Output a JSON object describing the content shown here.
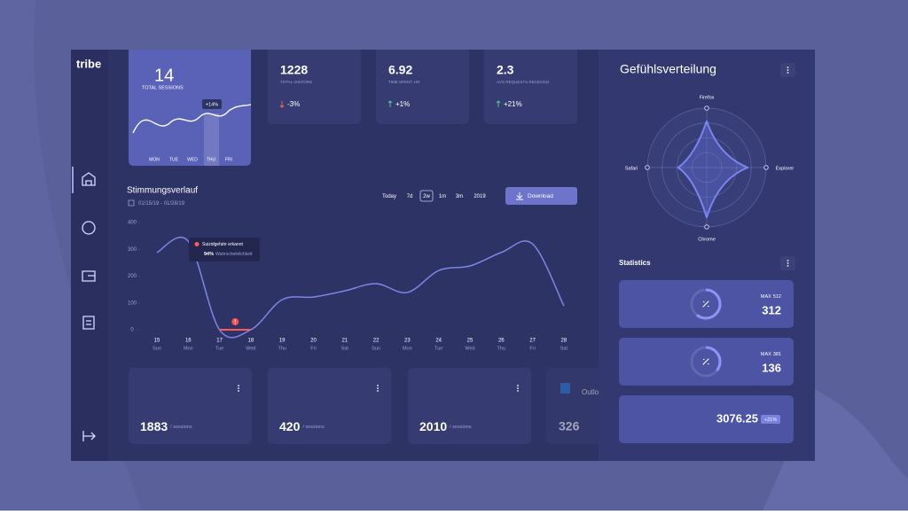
{
  "brand": "tribe",
  "hero": {
    "value": "14",
    "label": "TOTAL SESSIONS",
    "badge": "+14%",
    "days": [
      "MON",
      "TUE",
      "WED",
      "THU",
      "FRI"
    ]
  },
  "kpis": [
    {
      "value": "1228",
      "label": "TOTAL VISITORS",
      "change": "-3%"
    },
    {
      "value": "6.92",
      "label": "TIME SPENT, HR",
      "change": "+1%"
    },
    {
      "value": "2.3",
      "label": "AVG REQUESTS RECEIVED",
      "change": "+21%"
    }
  ],
  "controls": {
    "ranges": [
      "Today",
      "7d",
      "2w",
      "1m",
      "3m",
      "2019"
    ],
    "active": "2w",
    "download": "Download"
  },
  "chart_data": [
    {
      "type": "line",
      "title": "Stimmungsverlauf",
      "subtitle": "01/15/19 - 01/28/19",
      "categories": [
        "15",
        "16",
        "17",
        "18",
        "19",
        "20",
        "21",
        "22",
        "23",
        "24",
        "25",
        "26",
        "27",
        "28"
      ],
      "weekdays": [
        "Sun",
        "Mon",
        "Tue",
        "Wed",
        "Thu",
        "Fri",
        "Sat",
        "Sun",
        "Mon",
        "Tue",
        "Wed",
        "Thu",
        "Fri",
        "Sat"
      ],
      "values": [
        288,
        330,
        0,
        0,
        112,
        122,
        145,
        172,
        139,
        221,
        238,
        288,
        320,
        89
      ],
      "ylim": [
        0,
        400
      ],
      "yticks": [
        0,
        100,
        200,
        300,
        400
      ],
      "color": "#7d86e8",
      "annotation": {
        "title": "Suizidgefahr erkannt",
        "value": "94%",
        "label": "Wahrscheinlichkeit"
      }
    },
    {
      "type": "radar",
      "title": "Gefühlsverteilung",
      "categories": [
        "Firefox",
        "Explorer",
        "Chrome",
        "Safari"
      ],
      "values": [
        78,
        69,
        84,
        48
      ],
      "rlim": [
        0,
        100
      ],
      "color": "#7b84f0"
    }
  ],
  "statistics": {
    "title": "Statistics",
    "cards": [
      {
        "max_prefix": "MAX",
        "max": 512,
        "value": 312
      },
      {
        "max_prefix": "MAX",
        "max": 381,
        "value": 136
      },
      {
        "value": 3076.25,
        "badge": "+21%"
      }
    ]
  },
  "sessions": [
    {
      "value": "1883",
      "unit": "/ sessions"
    },
    {
      "value": "420",
      "unit": "/ sessions"
    },
    {
      "value": "2010",
      "unit": "/ sessions"
    },
    {
      "value": "326",
      "label": "Outlook"
    }
  ]
}
